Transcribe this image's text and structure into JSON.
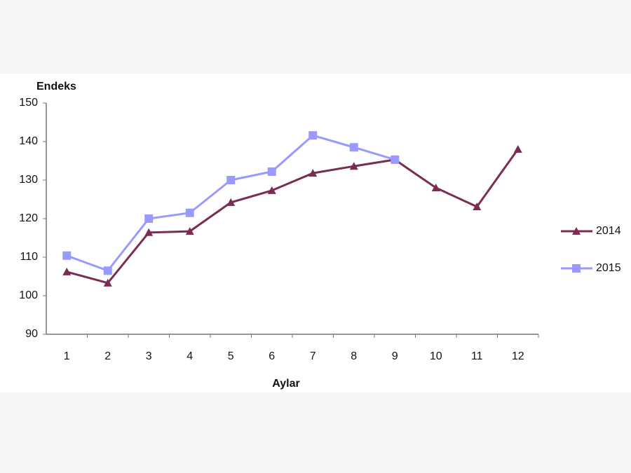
{
  "chart_data": {
    "type": "line",
    "y_label": "Endeks",
    "x_label": "Aylar",
    "categories": [
      "1",
      "2",
      "3",
      "4",
      "5",
      "6",
      "7",
      "8",
      "9",
      "10",
      "11",
      "12"
    ],
    "series": [
      {
        "name": "2014",
        "color": "#7b2c52",
        "marker": "triangle",
        "values": [
          106.2,
          103.3,
          116.4,
          116.7,
          124.2,
          127.3,
          131.8,
          133.6,
          135.3,
          128,
          123.1,
          138
        ]
      },
      {
        "name": "2015",
        "color": "#9999ff",
        "marker": "square",
        "values": [
          110.4,
          106.5,
          120,
          121.5,
          130,
          132.2,
          141.6,
          138.5,
          135.3,
          null,
          null,
          null
        ]
      }
    ],
    "ylim": [
      90,
      150
    ],
    "yticks": [
      90,
      100,
      110,
      120,
      130,
      140,
      150
    ],
    "grid": false,
    "legend": "right"
  }
}
